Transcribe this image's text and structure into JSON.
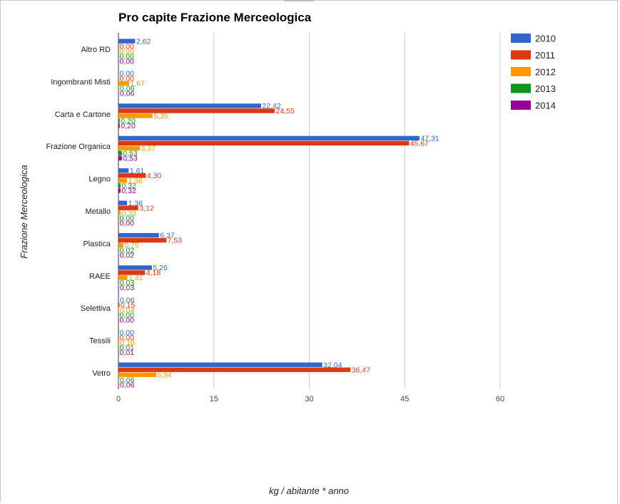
{
  "chart_data": {
    "type": "bar",
    "orientation": "horizontal",
    "title": "Pro capite Frazione Merceologica",
    "xlabel": "kg / abitante * anno",
    "ylabel": "Frazione Merceologica",
    "xlim": [
      0,
      60
    ],
    "xticks": [
      "0",
      "15",
      "30",
      "45",
      "60"
    ],
    "grid": true,
    "legend_position": "top-right",
    "categories": [
      "Altro RD",
      "Ingombranti Misti",
      "Carta e Cartone",
      "Frazione Organica",
      "Legno",
      "Metallo",
      "Plastica",
      "RAEE",
      "Selettiva",
      "Tessili",
      "Vetro"
    ],
    "series": [
      {
        "name": "2010",
        "color": "#3366cc",
        "values": [
          2.62,
          0.0,
          22.42,
          47.31,
          1.61,
          1.36,
          6.37,
          5.26,
          0.06,
          0.0,
          32.04
        ],
        "labels": [
          "2,62",
          "0,00",
          "22,42",
          "47,31",
          "1,61",
          "1,36",
          "6,37",
          "5,26",
          "0,06",
          "0,00",
          "32,04"
        ]
      },
      {
        "name": "2011",
        "color": "#dc3912",
        "values": [
          0.0,
          0.0,
          24.55,
          45.67,
          4.3,
          3.12,
          7.53,
          4.18,
          0.15,
          0.0,
          36.47
        ],
        "labels": [
          "0,00",
          "0,00",
          "24,55",
          "45,67",
          "4,30",
          "3,12",
          "7,53",
          "4,18",
          "0,15",
          "0,00",
          "36,47"
        ]
      },
      {
        "name": "2012",
        "color": "#ff9900",
        "values": [
          0.0,
          1.67,
          5.35,
          3.37,
          1.36,
          0.33,
          0.75,
          1.41,
          0.04,
          0.1,
          5.94
        ],
        "labels": [
          "0,00",
          "1,67",
          "5,35",
          "3,37",
          "1,36",
          "0,33",
          "0,75",
          "1,41",
          "0,04",
          "0,10",
          "5,94"
        ]
      },
      {
        "name": "2013",
        "color": "#109618",
        "values": [
          0.0,
          0.06,
          0.2,
          0.53,
          0.32,
          0.0,
          0.02,
          0.03,
          0.0,
          0.01,
          0.06
        ],
        "labels": [
          "0,00",
          "0,06",
          "0,20",
          "0,53",
          "0,32",
          "0,00",
          "0,02",
          "0,03",
          "0,00",
          "0,01",
          "0,06"
        ]
      },
      {
        "name": "2014",
        "color": "#990099",
        "values": [
          0.0,
          0.06,
          0.2,
          0.53,
          0.32,
          0.0,
          0.02,
          0.03,
          0.0,
          0.01,
          0.06
        ],
        "labels": [
          "0,00",
          "0,06",
          "0,20",
          "0,53",
          "0,32",
          "0,00",
          "0,02",
          "0,03",
          "0,00",
          "0,01",
          "0,06"
        ]
      }
    ]
  }
}
